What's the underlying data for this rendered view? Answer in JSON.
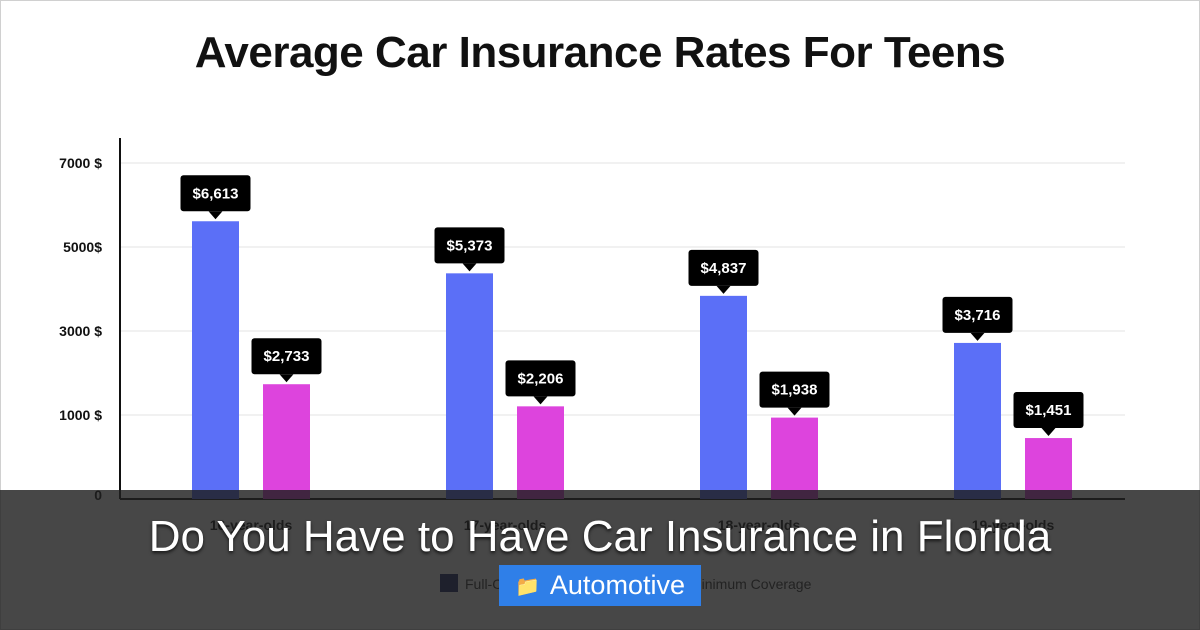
{
  "chart_data": {
    "type": "bar",
    "title": "Average Car Insurance Rates For Teens",
    "categories": [
      "16-year-olds",
      "17-year-olds",
      "18-year-olds",
      "19-year-olds"
    ],
    "series": [
      {
        "name": "Full-Coverage",
        "color": "#5b6ff7",
        "values": [
          6613,
          5373,
          4837,
          3716
        ],
        "labels": [
          "$6,613",
          "$5,373",
          "$4,837",
          "$3,716"
        ]
      },
      {
        "name": "Minimum Coverage",
        "color": "#dd44dd",
        "values": [
          2733,
          2206,
          1938,
          1451
        ],
        "labels": [
          "$2,733",
          "$2,206",
          "$1,938",
          "$1,451"
        ]
      }
    ],
    "ytick_labels": [
      "0",
      "1000 $",
      "3000 $",
      "5000$",
      "7000 $"
    ],
    "ylim": [
      0,
      8000
    ],
    "grid": true,
    "legend_position": "bottom",
    "legend_swatch_color": "#1f2a6b"
  },
  "overlay": {
    "title": "Do You Have to Have Car Insurance in Florida",
    "category_icon": "folder-icon",
    "category_label": "Automotive"
  }
}
